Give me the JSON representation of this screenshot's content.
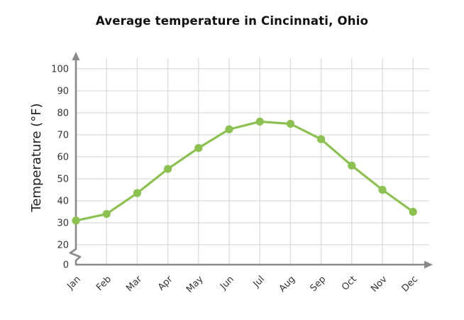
{
  "page": {
    "background": "#ffffff"
  },
  "chart_data": {
    "type": "line",
    "title": "Average temperature in Cincinnati, Ohio",
    "ylabel": "Temperature (°F)",
    "xlabel": "",
    "categories": [
      "Jan",
      "Feb",
      "Mar",
      "Apr",
      "May",
      "Jun",
      "Jul",
      "Aug",
      "Sep",
      "Oct",
      "Nov",
      "Dec"
    ],
    "series": [
      {
        "name": "Average temperature (°F)",
        "values": [
          31,
          34,
          43.5,
          54.5,
          64,
          72.5,
          76,
          75,
          68,
          56,
          45,
          35
        ]
      }
    ],
    "yticks": [
      0,
      20,
      30,
      40,
      50,
      60,
      70,
      80,
      90,
      100
    ],
    "ylim": [
      0,
      100
    ],
    "axis_break_between": [
      0,
      20
    ],
    "grid": true,
    "legend": "none",
    "marker": "circle",
    "colors": {
      "line": "#8cc152",
      "marker": "#8cc152",
      "grid": "#d9d9d9",
      "axis": "#8a8a8a",
      "tick_text": "#333333",
      "axis_label_text": "#1f1f1f",
      "title_text": "#111111"
    }
  }
}
